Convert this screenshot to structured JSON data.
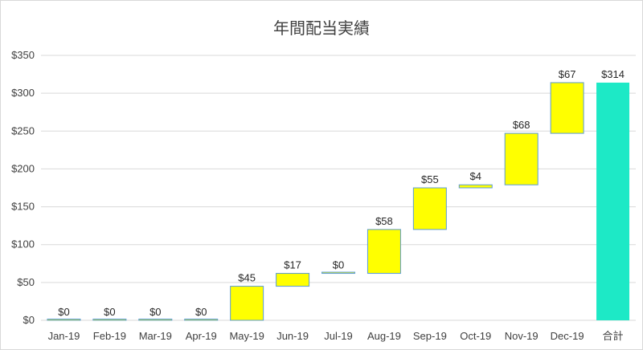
{
  "chart_data": {
    "type": "bar",
    "subtype": "waterfall",
    "title": "年間配当実績",
    "xlabel": "",
    "ylabel": "",
    "ylim": [
      0,
      350
    ],
    "yticks": [
      "$0",
      "$50",
      "$100",
      "$150",
      "$200",
      "$250",
      "$300",
      "$350"
    ],
    "ytick_values": [
      0,
      50,
      100,
      150,
      200,
      250,
      300,
      350
    ],
    "grid": true,
    "legend": "none",
    "categories": [
      "Jan-19",
      "Feb-19",
      "Mar-19",
      "Apr-19",
      "May-19",
      "Jun-19",
      "Jul-19",
      "Aug-19",
      "Sep-19",
      "Oct-19",
      "Nov-19",
      "Dec-19",
      "合計"
    ],
    "values": [
      0,
      0,
      0,
      0,
      45,
      17,
      0,
      58,
      55,
      4,
      68,
      67,
      314
    ],
    "is_total": [
      false,
      false,
      false,
      false,
      false,
      false,
      false,
      false,
      false,
      false,
      false,
      false,
      true
    ],
    "data_labels": [
      "$0",
      "$0",
      "$0",
      "$0",
      "$45",
      "$17",
      "$0",
      "$58",
      "$55",
      "$4",
      "$68",
      "$67",
      "$314"
    ],
    "colors": {
      "increase": "#ffff00",
      "increase_border": "#5b9bd5",
      "total": "#1de9c6",
      "grid": "#d9d9d9"
    }
  }
}
